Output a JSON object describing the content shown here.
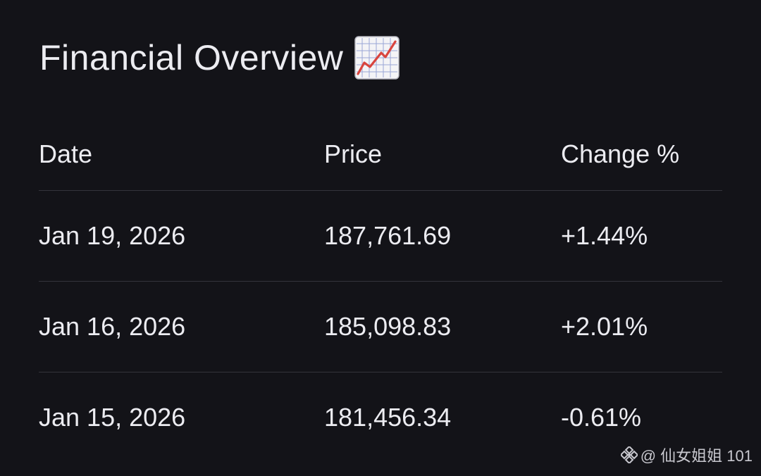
{
  "header": {
    "title": "Financial Overview",
    "icon": "chart-increasing-icon"
  },
  "table": {
    "columns": [
      "Date",
      "Price",
      "Change %"
    ],
    "rows": [
      {
        "date": "Jan 19, 2026",
        "price": "187,761.69",
        "change": "+1.44%"
      },
      {
        "date": "Jan 16, 2026",
        "price": "185,098.83",
        "change": "+2.01%"
      },
      {
        "date": "Jan 15, 2026",
        "price": "181,456.34",
        "change": "-0.61%"
      }
    ]
  },
  "watermark": {
    "icon": "binance-logo-icon",
    "text": "@ 仙女姐姐 101"
  },
  "colors": {
    "background": "#131318",
    "text": "#ececf1",
    "divider": "#34343b",
    "icon_line": "#d9453e"
  }
}
